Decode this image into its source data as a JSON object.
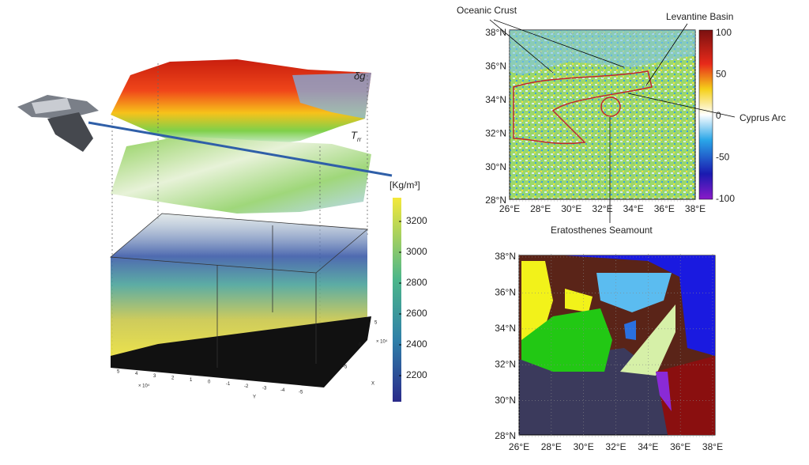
{
  "figure": {
    "surface_labels": {
      "gravity": "δg",
      "gradient": "T",
      "gradient_sub": "rr"
    },
    "density_colorbar": {
      "unit": "[Kg/m³]",
      "ticks": [
        "3200",
        "3000",
        "2800",
        "2600",
        "2400",
        "2200"
      ]
    },
    "cube_axes": {
      "x_label": "X",
      "y_label": "Y",
      "exponent": "× 10⁴",
      "y_ticks": [
        "5",
        "4",
        "3",
        "2",
        "1",
        "0",
        "-1",
        "-2",
        "-3",
        "-4",
        "-5"
      ],
      "x_ticks": [
        "5",
        "0",
        "-5"
      ]
    },
    "top_map": {
      "lat_ticks": [
        "38°N",
        "36°N",
        "34°N",
        "32°N",
        "30°N",
        "28°N"
      ],
      "lon_ticks": [
        "26°E",
        "28°E",
        "30°E",
        "32°E",
        "34°E",
        "36°E",
        "38°E"
      ],
      "colorbar_ticks": [
        "100",
        "50",
        "0",
        "-50",
        "-100"
      ],
      "annotations": [
        "Oceanic Crust",
        "Levantine Basin",
        "Cyprus Arc",
        "Eratosthenes Seamount"
      ]
    },
    "bottom_map": {
      "lat_ticks": [
        "38°N",
        "36°N",
        "34°N",
        "32°N",
        "30°N",
        "28°N"
      ],
      "lon_ticks": [
        "26°E",
        "28°E",
        "30°E",
        "32°E",
        "34°E",
        "36°E",
        "38°E"
      ]
    }
  }
}
